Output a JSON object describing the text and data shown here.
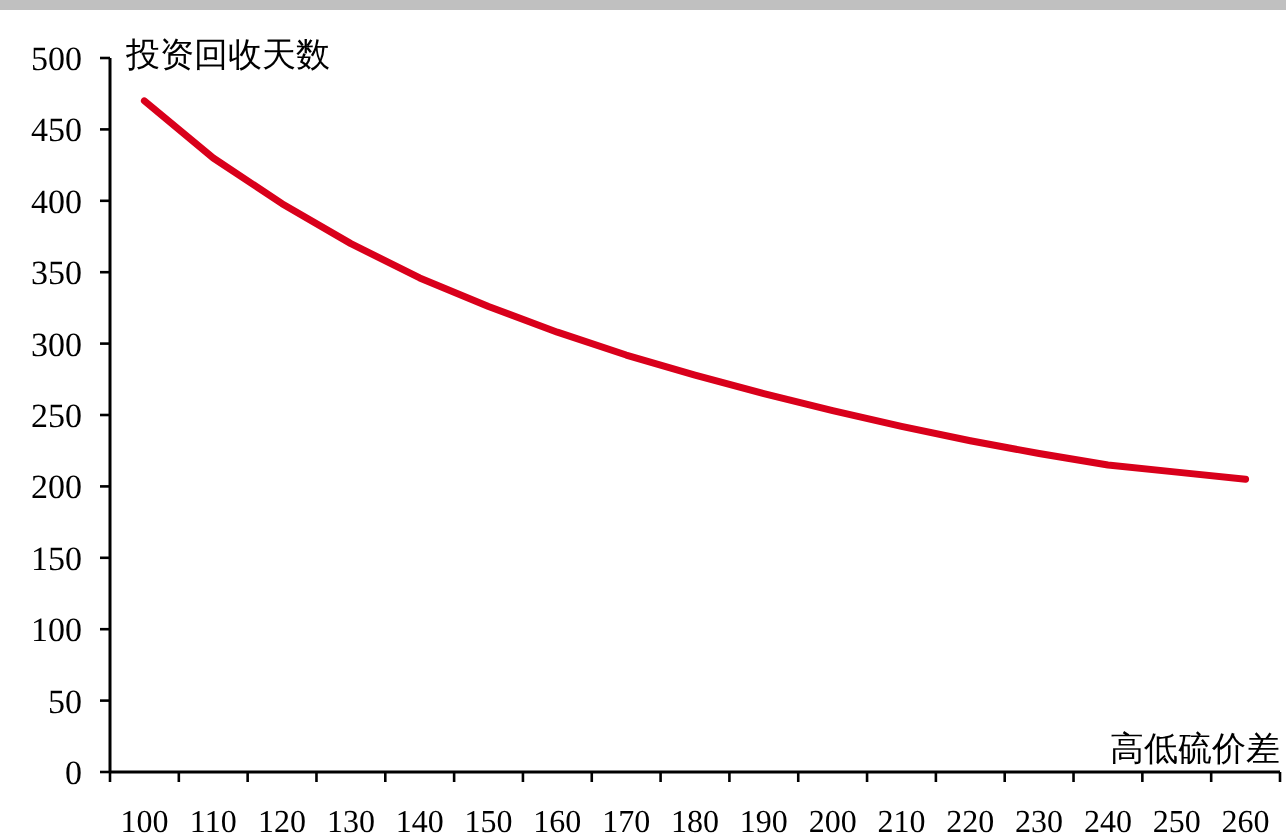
{
  "chart_data": {
    "type": "line",
    "xlabel": "高低硫价差",
    "ylabel": "投资回收天数",
    "categories": [
      "100",
      "110",
      "120",
      "130",
      "140",
      "150",
      "160",
      "170",
      "180",
      "190",
      "200",
      "210",
      "220",
      "230",
      "240",
      "250",
      "260"
    ],
    "series": [
      {
        "color": "#d9001b",
        "values": [
          470,
          430,
          398,
          370,
          346,
          326,
          308,
          292,
          278,
          265,
          253,
          242,
          232,
          223,
          215,
          210,
          205
        ]
      }
    ],
    "ylim": [
      0,
      500
    ],
    "yticks": [
      0,
      50,
      100,
      150,
      200,
      250,
      300,
      350,
      400,
      450,
      500
    ],
    "grid": false,
    "marker": "none",
    "line_style": "solid"
  }
}
